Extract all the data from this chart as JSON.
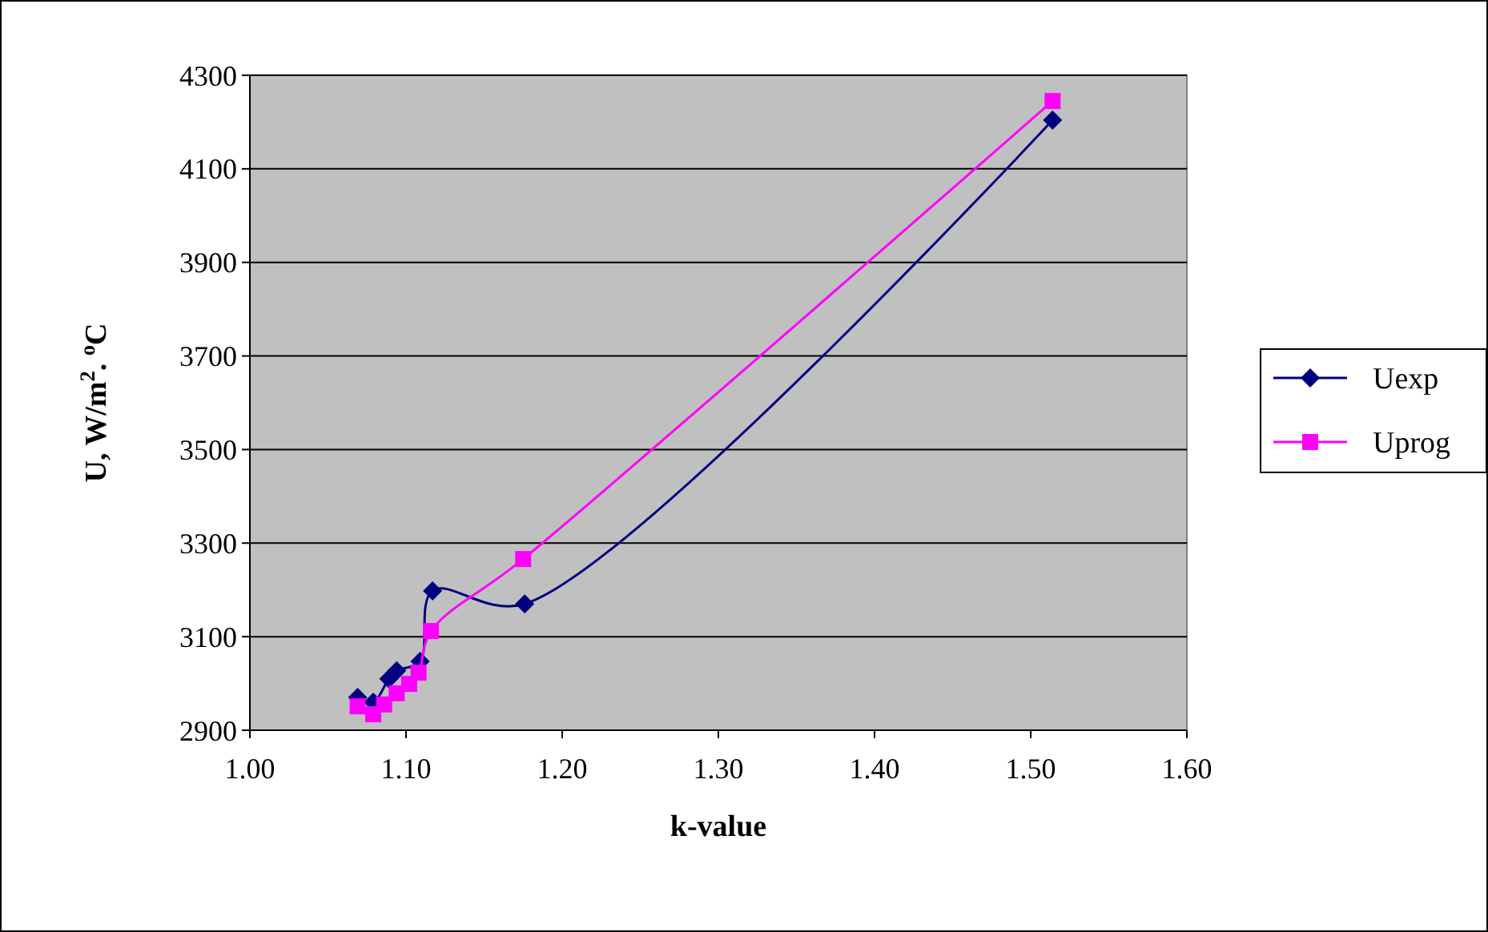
{
  "chart_data": {
    "type": "line",
    "xlabel": "k-value",
    "ylabel": "U, W/m$^{2}$. $^{o}$C",
    "xlim": [
      1.0,
      1.6
    ],
    "xticks": [
      {
        "value": 1.0,
        "label": "1.00"
      },
      {
        "value": 1.1,
        "label": "1.10"
      },
      {
        "value": 1.2,
        "label": "1.20"
      },
      {
        "value": 1.3,
        "label": "1.30"
      },
      {
        "value": 1.4,
        "label": "1.40"
      },
      {
        "value": 1.5,
        "label": "1.50"
      },
      {
        "value": 1.6,
        "label": "1.60"
      }
    ],
    "ylim": [
      2900,
      4300
    ],
    "yticks": [
      2900,
      3100,
      3300,
      3500,
      3700,
      3900,
      4100,
      4300
    ],
    "grid": "y",
    "legend": "right",
    "series": [
      {
        "name": "Uexp",
        "color": "#000080",
        "marker": "diamond",
        "x": [
          1.069,
          1.079,
          1.089,
          1.094,
          1.109,
          1.117,
          1.176,
          1.514
        ],
        "values": [
          2970,
          2960,
          3010,
          3027,
          3047,
          3198,
          3170,
          4204
        ]
      },
      {
        "name": "Uprog",
        "color": "#ff00ff",
        "marker": "square",
        "x": [
          1.069,
          1.079,
          1.086,
          1.094,
          1.102,
          1.108,
          1.116,
          1.175,
          1.514
        ],
        "values": [
          2951,
          2934,
          2955,
          2979,
          2999,
          3023,
          3112,
          3266,
          4245
        ]
      }
    ]
  }
}
